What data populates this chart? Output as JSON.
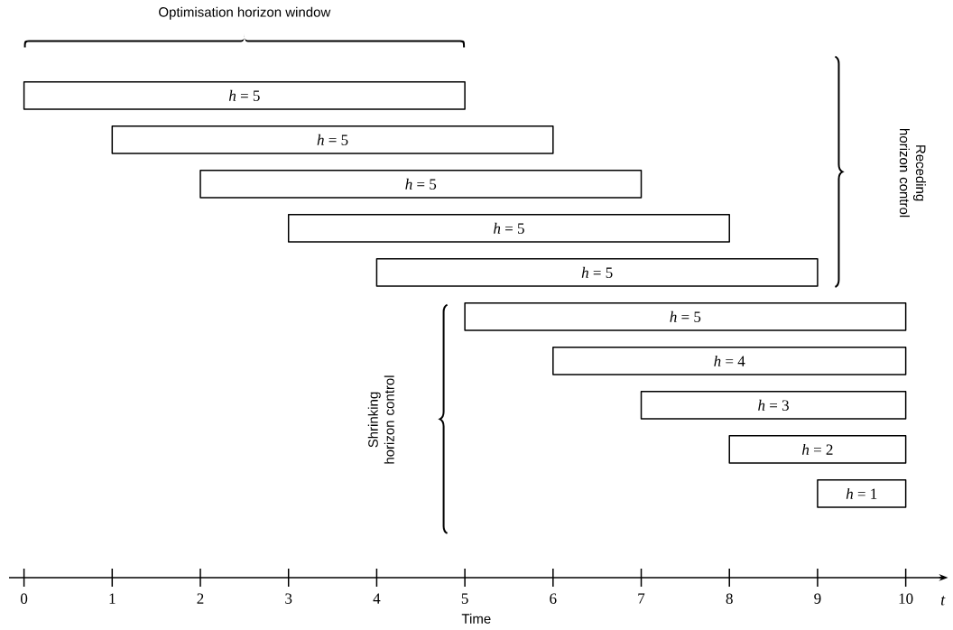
{
  "chart_data": {
    "type": "bar",
    "orientation": "horizontal",
    "xlabel": "Time",
    "categories": [
      null,
      null,
      null,
      null,
      null,
      null,
      null,
      null,
      null,
      null
    ],
    "base": [
      0,
      1,
      2,
      3,
      4,
      5,
      6,
      7,
      8,
      9
    ],
    "values": [
      5,
      5,
      5,
      5,
      5,
      5,
      4,
      3,
      2,
      1
    ],
    "value_labels": [
      "*h* = 5",
      "*h* = 5",
      "*h* = 5",
      "*h* = 5",
      "*h* = 5",
      "*h* = 5",
      "*h* = 4",
      "*h* = 3",
      "*h* = 2",
      "*h* = 1"
    ],
    "color": "#ffffff",
    "xlim": [
      -0.17,
      10.43
    ],
    "xticks": [
      0,
      1,
      2,
      3,
      4,
      5,
      6,
      7,
      8,
      9,
      10
    ],
    "annotations": [
      "Optimisation horizon window",
      "Receding horizon control",
      "Shrinking horizon control",
      "t"
    ]
  }
}
